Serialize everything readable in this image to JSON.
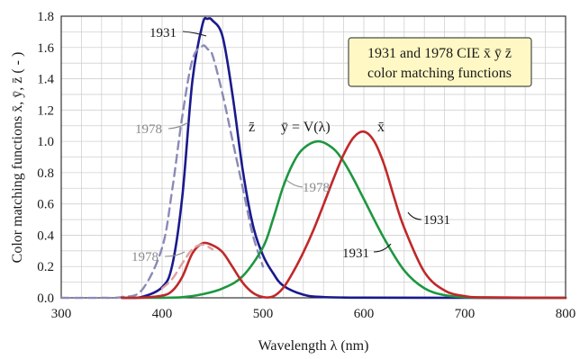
{
  "chart_data": {
    "type": "line",
    "title_box": {
      "line1": "1931 and 1978 CIE x̄ ȳ z̄",
      "line2": "color  matching functions"
    },
    "xlabel": "Wavelength  λ  (nm)",
    "ylabel": "Color  matching  functions  x̄,  ȳ,  z̄  ( - )",
    "xlim": [
      300,
      800
    ],
    "ylim": [
      0,
      1.8
    ],
    "xticks": [
      300,
      400,
      500,
      600,
      700,
      800
    ],
    "yticks": [
      "0.0",
      "0.2",
      "0.4",
      "0.6",
      "0.8",
      "1.0",
      "1.2",
      "1.4",
      "1.6",
      "1.8"
    ],
    "grid": true,
    "series": [
      {
        "name": "z̄",
        "year": "1931",
        "color": "#1a1a8c",
        "dash": "solid",
        "x": [
          360,
          380,
          400,
          410,
          420,
          430,
          440,
          445,
          450,
          460,
          470,
          480,
          490,
          500,
          510,
          520,
          540,
          560,
          600,
          700,
          800
        ],
        "y": [
          0.0,
          0.006,
          0.068,
          0.207,
          0.646,
          1.386,
          1.747,
          1.783,
          1.772,
          1.669,
          1.288,
          0.813,
          0.465,
          0.272,
          0.158,
          0.078,
          0.02,
          0.005,
          0.001,
          0.0,
          0.0
        ]
      },
      {
        "name": "z̄",
        "year": "1978",
        "color": "#8a8ab8",
        "dash": "dashed",
        "x": [
          300,
          340,
          360,
          380,
          400,
          410,
          420,
          430,
          440,
          445,
          450,
          460,
          470,
          480,
          490,
          500
        ],
        "y": [
          0.0,
          0.0,
          0.005,
          0.05,
          0.32,
          0.69,
          1.16,
          1.52,
          1.61,
          1.59,
          1.55,
          1.3,
          1.0,
          0.7,
          0.4,
          0.2
        ]
      },
      {
        "name": "ȳ = V(λ)",
        "year": "1931",
        "color": "#1e9640",
        "dash": "solid",
        "x": [
          360,
          380,
          400,
          420,
          440,
          460,
          480,
          500,
          510,
          520,
          530,
          540,
          555,
          570,
          580,
          590,
          600,
          620,
          640,
          660,
          680,
          700,
          720,
          800
        ],
        "y": [
          0.0,
          0.0,
          0.0004,
          0.004,
          0.023,
          0.06,
          0.139,
          0.323,
          0.503,
          0.71,
          0.862,
          0.954,
          1.0,
          0.952,
          0.87,
          0.757,
          0.631,
          0.381,
          0.175,
          0.061,
          0.017,
          0.004,
          0.001,
          0.0
        ]
      },
      {
        "name": "x̄",
        "year": "1931",
        "color": "#c0282a",
        "dash": "solid",
        "x": [
          360,
          380,
          400,
          410,
          420,
          430,
          440,
          450,
          460,
          470,
          480,
          490,
          500,
          510,
          520,
          530,
          540,
          550,
          560,
          570,
          580,
          590,
          600,
          610,
          620,
          630,
          640,
          660,
          680,
          700,
          720,
          800
        ],
        "y": [
          0.0,
          0.001,
          0.014,
          0.044,
          0.134,
          0.284,
          0.348,
          0.336,
          0.291,
          0.195,
          0.096,
          0.032,
          0.005,
          0.009,
          0.063,
          0.166,
          0.29,
          0.433,
          0.595,
          0.762,
          0.916,
          1.026,
          1.062,
          1.003,
          0.854,
          0.642,
          0.448,
          0.165,
          0.047,
          0.011,
          0.003,
          0.0
        ]
      },
      {
        "name": "x̄",
        "year": "1978",
        "color": "#e0a0a0",
        "dash": "dashed",
        "x": [
          400,
          410,
          420,
          430,
          440,
          450
        ],
        "y": [
          0.06,
          0.12,
          0.22,
          0.31,
          0.34,
          0.31
        ]
      }
    ],
    "annotations": [
      {
        "text": "1931",
        "color": "#1a1a1a"
      },
      {
        "text": "1978",
        "color": "#8a8a8a"
      },
      {
        "text": "1978",
        "color": "#8a8a8a"
      },
      {
        "text": "1978",
        "color": "#8a8a8a"
      },
      {
        "text": "1931",
        "color": "#1a1a1a"
      },
      {
        "text": "1931",
        "color": "#1a1a1a"
      }
    ],
    "curve_labels": [
      "z̄",
      "ȳ = V(λ)",
      "x̄"
    ]
  }
}
